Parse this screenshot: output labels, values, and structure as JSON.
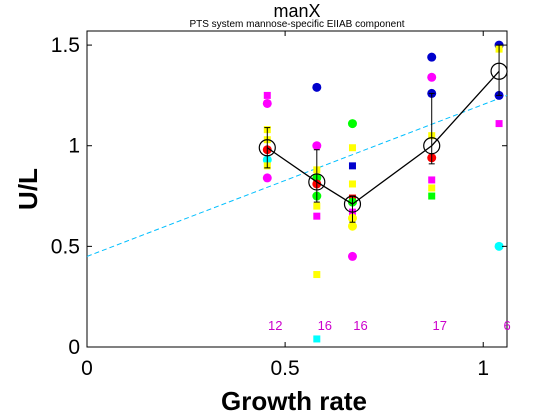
{
  "chart_data": {
    "type": "scatter",
    "title": "manX",
    "subtitle": "PTS system mannose-specific EIIAB component",
    "xlabel": "Growth rate",
    "ylabel": "U/L",
    "xlim": [
      0,
      1.06
    ],
    "ylim": [
      0,
      1.57
    ],
    "xticks": [
      "0",
      "0.5",
      "1"
    ],
    "xtick_values": [
      0,
      0.5,
      1
    ],
    "yticks": [
      "0",
      "0.5",
      "1",
      "1.5"
    ],
    "ytick_values": [
      0,
      0.5,
      1,
      1.5
    ],
    "grid": false,
    "legend": "none",
    "colors": {
      "magenta": "#ff00ff",
      "yellow": "#ffff00",
      "cyan": "#00ffff",
      "green": "#00ff00",
      "blue": "#0000cc",
      "red": "#ff0000",
      "fit_line": "#00bfff",
      "count_text": "#cc00cc"
    },
    "groups": [
      {
        "x": 0.455,
        "count": "12",
        "mean": 0.99,
        "err_low": 0.89,
        "err_high": 1.09,
        "points": [
          {
            "y": 1.25,
            "color": "magenta",
            "marker": "square"
          },
          {
            "y": 1.21,
            "color": "magenta",
            "marker": "circle"
          },
          {
            "y": 1.08,
            "color": "yellow",
            "marker": "square"
          },
          {
            "y": 1.03,
            "color": "yellow",
            "marker": "square"
          },
          {
            "y": 0.98,
            "color": "red",
            "marker": "circle"
          },
          {
            "y": 0.93,
            "color": "cyan",
            "marker": "circle"
          },
          {
            "y": 0.9,
            "color": "yellow",
            "marker": "square"
          },
          {
            "y": 0.84,
            "color": "magenta",
            "marker": "circle"
          }
        ]
      },
      {
        "x": 0.58,
        "count": "16",
        "mean": 0.82,
        "err_low": 0.72,
        "err_high": 0.98,
        "points": [
          {
            "y": 1.29,
            "color": "blue",
            "marker": "circle"
          },
          {
            "y": 1.0,
            "color": "magenta",
            "marker": "circle"
          },
          {
            "y": 0.88,
            "color": "yellow",
            "marker": "square"
          },
          {
            "y": 0.84,
            "color": "green",
            "marker": "circle"
          },
          {
            "y": 0.81,
            "color": "red",
            "marker": "circle"
          },
          {
            "y": 0.75,
            "color": "green",
            "marker": "circle"
          },
          {
            "y": 0.7,
            "color": "yellow",
            "marker": "square"
          },
          {
            "y": 0.65,
            "color": "magenta",
            "marker": "square"
          },
          {
            "y": 0.36,
            "color": "yellow",
            "marker": "square"
          },
          {
            "y": 0.04,
            "color": "cyan",
            "marker": "square"
          }
        ]
      },
      {
        "x": 0.67,
        "count": "16",
        "mean": 0.71,
        "err_low": 0.62,
        "err_high": 0.75,
        "points": [
          {
            "y": 1.11,
            "color": "green",
            "marker": "circle"
          },
          {
            "y": 0.99,
            "color": "yellow",
            "marker": "square"
          },
          {
            "y": 0.9,
            "color": "blue",
            "marker": "square"
          },
          {
            "y": 0.81,
            "color": "yellow",
            "marker": "square"
          },
          {
            "y": 0.74,
            "color": "red",
            "marker": "square"
          },
          {
            "y": 0.72,
            "color": "green",
            "marker": "circle"
          },
          {
            "y": 0.67,
            "color": "magenta",
            "marker": "square"
          },
          {
            "y": 0.64,
            "color": "yellow",
            "marker": "circle"
          },
          {
            "y": 0.6,
            "color": "yellow",
            "marker": "circle"
          },
          {
            "y": 0.45,
            "color": "magenta",
            "marker": "circle"
          }
        ]
      },
      {
        "x": 0.87,
        "count": "17",
        "mean": 1.0,
        "err_low": 0.91,
        "err_high": 1.26,
        "points": [
          {
            "y": 1.44,
            "color": "blue",
            "marker": "circle"
          },
          {
            "y": 1.34,
            "color": "magenta",
            "marker": "circle"
          },
          {
            "y": 1.26,
            "color": "blue",
            "marker": "circle"
          },
          {
            "y": 1.05,
            "color": "yellow",
            "marker": "square"
          },
          {
            "y": 0.94,
            "color": "red",
            "marker": "circle"
          },
          {
            "y": 0.83,
            "color": "magenta",
            "marker": "square"
          },
          {
            "y": 0.79,
            "color": "yellow",
            "marker": "square"
          },
          {
            "y": 0.75,
            "color": "green",
            "marker": "square"
          }
        ]
      },
      {
        "x": 1.04,
        "count": "6",
        "mean": 1.37,
        "err_low": 1.25,
        "err_high": 1.5,
        "points": [
          {
            "y": 1.5,
            "color": "blue",
            "marker": "circle"
          },
          {
            "y": 1.48,
            "color": "yellow",
            "marker": "square"
          },
          {
            "y": 1.25,
            "color": "blue",
            "marker": "circle"
          },
          {
            "y": 1.11,
            "color": "magenta",
            "marker": "square"
          },
          {
            "y": 0.5,
            "color": "cyan",
            "marker": "circle"
          }
        ]
      }
    ],
    "fit_line": {
      "style": "dashed",
      "x": [
        0,
        1.06
      ],
      "y": [
        0.45,
        1.25
      ]
    }
  }
}
